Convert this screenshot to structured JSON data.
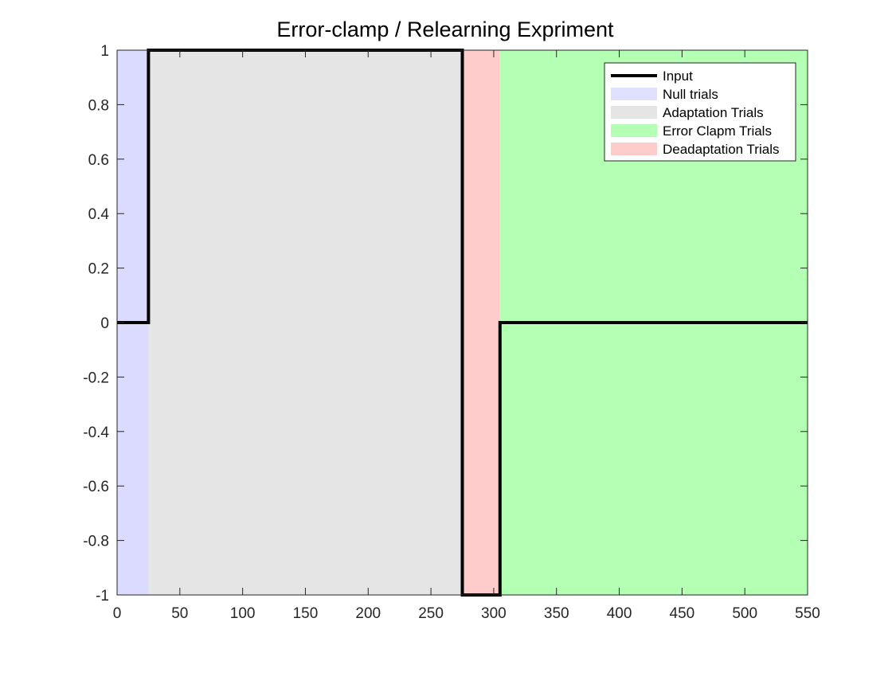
{
  "chart_data": {
    "type": "line",
    "title": "Error-clamp / Relearning Expriment",
    "xlabel": "",
    "ylabel": "",
    "xlim": [
      0,
      550
    ],
    "ylim": [
      -1,
      1
    ],
    "xticks": [
      0,
      50,
      100,
      150,
      200,
      250,
      300,
      350,
      400,
      450,
      500,
      550
    ],
    "yticks": [
      -1,
      -0.8,
      -0.6,
      -0.4,
      -0.2,
      0,
      0.2,
      0.4,
      0.6,
      0.8,
      1
    ],
    "xtick_labels": [
      "0",
      "50",
      "100",
      "150",
      "200",
      "250",
      "300",
      "350",
      "400",
      "450",
      "500",
      "550"
    ],
    "ytick_labels": [
      "-1",
      "-0.8",
      "-0.6",
      "-0.4",
      "-0.2",
      "0",
      "0.2",
      "0.4",
      "0.6",
      "0.8",
      "1"
    ],
    "grid": false,
    "legend_position": "top-right",
    "series": [
      {
        "name": "Input",
        "color": "#000000",
        "x": [
          0,
          25,
          25,
          275,
          275,
          305,
          305,
          550
        ],
        "y": [
          0,
          0,
          1,
          1,
          -1,
          -1,
          0,
          0
        ]
      }
    ],
    "regions": [
      {
        "name": "Null trials",
        "x_start": 0,
        "x_end": 25,
        "color": "#ccccff",
        "opacity": 0.7
      },
      {
        "name": "Adaptation Trials",
        "x_start": 25,
        "x_end": 275,
        "color": "#e5e5e5",
        "opacity": 1
      },
      {
        "name": "Deadaptation Trials",
        "x_start": 275,
        "x_end": 305,
        "color": "#ffcccc",
        "opacity": 1
      },
      {
        "name": "Error Clapm Trials",
        "x_start": 305,
        "x_end": 550,
        "color": "#b3ffb3",
        "opacity": 1
      }
    ],
    "legend_entries": [
      {
        "label": "Input",
        "kind": "line",
        "color": "#000000"
      },
      {
        "label": "Null trials",
        "kind": "patch",
        "color": "#e0e0ff"
      },
      {
        "label": "Adaptation Trials",
        "kind": "patch",
        "color": "#e5e5e5"
      },
      {
        "label": "Error Clapm Trials",
        "kind": "patch",
        "color": "#b3ffb3"
      },
      {
        "label": "Deadaptation Trials",
        "kind": "patch",
        "color": "#ffcccc"
      }
    ]
  }
}
